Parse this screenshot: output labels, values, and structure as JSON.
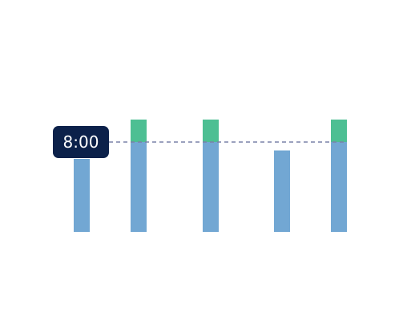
{
  "chart_data": {
    "type": "bar",
    "stacked": true,
    "categories": [
      "",
      "",
      "",
      "",
      ""
    ],
    "series": [
      {
        "values": [
          6.5,
          8.0,
          8.0,
          7.25,
          8.0
        ],
        "color": "#72a7d3"
      },
      {
        "values": [
          0,
          2.0,
          2.0,
          0,
          2.0
        ],
        "color": "#4dbf93"
      }
    ],
    "reference_line": {
      "value": 8.0,
      "label": "8:00",
      "style": "dashed",
      "color": "#7a82a8"
    },
    "ylim": [
      0,
      10
    ],
    "grid": false,
    "legend": "none",
    "title": "",
    "xlabel": "",
    "ylabel": ""
  }
}
